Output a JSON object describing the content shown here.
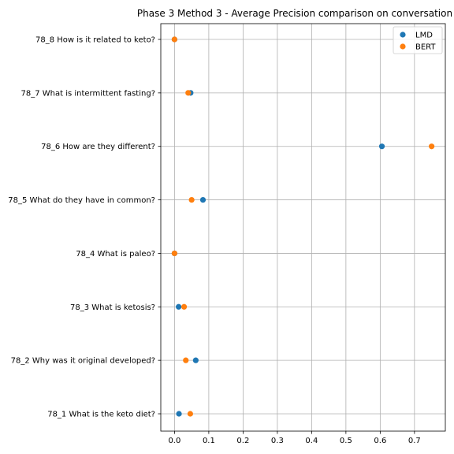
{
  "chart_data": {
    "type": "scatter",
    "title": "Phase 3 Method 3 - Average Precision comparison on conversation",
    "xlabel": "",
    "ylabel": "",
    "xlim": [
      -0.04,
      0.79
    ],
    "xticks": [
      0.0,
      0.1,
      0.2,
      0.3,
      0.4,
      0.5,
      0.6,
      0.7
    ],
    "xtick_labels": [
      "0.0",
      "0.1",
      "0.2",
      "0.3",
      "0.4",
      "0.5",
      "0.6",
      "0.7"
    ],
    "grid": true,
    "legend_position": "top-right",
    "categories": [
      "78_1 What is the keto diet?",
      "78_2 Why was it original developed?",
      "78_3 What is ketosis?",
      "78_4 What is paleo?",
      "78_5 What do they have in common?",
      "78_6 How are they different?",
      "78_7 What is intermittent fasting?",
      "78_8 How is it related to keto?"
    ],
    "series": [
      {
        "name": "LMD",
        "color": "#1f77b4",
        "values": [
          0.013,
          0.062,
          0.012,
          0.0,
          0.083,
          0.605,
          0.047,
          0.0
        ]
      },
      {
        "name": "BERT",
        "color": "#ff7f0e",
        "values": [
          0.046,
          0.033,
          0.028,
          0.0,
          0.05,
          0.75,
          0.04,
          0.0
        ]
      }
    ]
  }
}
